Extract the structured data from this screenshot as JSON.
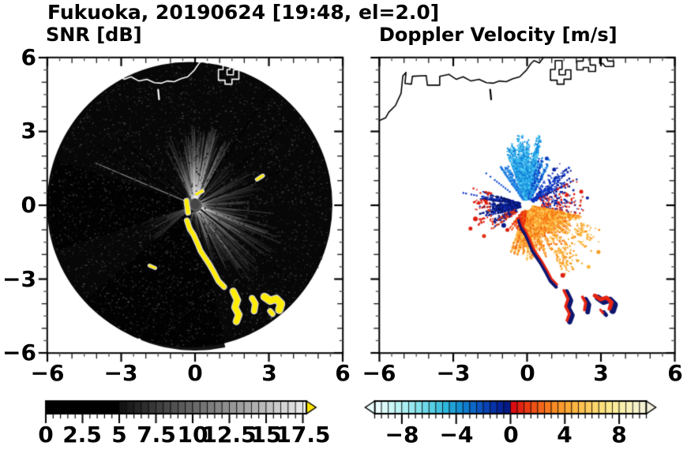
{
  "header": {
    "title": "Fukuoka, 20190624 [19:48, el=2.0]",
    "left_subtitle": "SNR [dB]",
    "right_subtitle": "Doppler Velocity [m/s]"
  },
  "chart_data": {
    "type": "heatmap",
    "title": "Fukuoka, 20190624 [19:48, el=2.0]",
    "axes": {
      "xlim": [
        -6,
        6
      ],
      "ylim": [
        -6,
        6
      ],
      "x_tick_values": [
        -6,
        -3,
        0,
        3,
        6
      ],
      "x_tick_labels": [
        "−6",
        "−3",
        "0",
        "3",
        "6"
      ],
      "y_tick_values": [
        6,
        3,
        0,
        -3,
        -6
      ],
      "y_tick_labels": [
        "6",
        "3",
        "0",
        "−3",
        "−6"
      ],
      "minor_step": 0.5
    },
    "panels": [
      {
        "name": "snr",
        "label": "SNR [dB]",
        "style": "grayscale disk with yellow strong echoes"
      },
      {
        "name": "doppler",
        "label": "Doppler Velocity [m/s]",
        "style": "diverging cyan-blue / red-yellow fan"
      }
    ],
    "snr_colorbar": {
      "unit": "dB",
      "range": [
        0,
        17.75
      ],
      "black_until": 5,
      "gray_from": "#141414",
      "gray_to": "#f2f2f2",
      "arrow": "#ffe400",
      "segment": 0.5,
      "tick_values": [
        0,
        2.5,
        5,
        7.5,
        10,
        12.5,
        15,
        17.5
      ],
      "tick_labels": [
        "0",
        "2.5",
        "5",
        "7.5",
        "10",
        "12.5",
        "15",
        "17.5"
      ]
    },
    "doppler_colorbar": {
      "unit": "m/s",
      "range": [
        -10,
        10
      ],
      "segment": 0.5,
      "tick_values": [
        -8,
        -4,
        0,
        4,
        8
      ],
      "tick_labels": [
        "−8",
        "−4",
        "0",
        "4",
        "8"
      ],
      "neg_stops": [
        "#eafcfc",
        "#cdf6f6",
        "#abeef2",
        "#83e2ec",
        "#57cfe4",
        "#2fb6dc",
        "#148fd2",
        "#0d67c6",
        "#0942b6",
        "#062499",
        "#031070"
      ],
      "pos_stops": [
        "#dc0d12",
        "#ea3a12",
        "#f3661a",
        "#f98b24",
        "#fca836",
        "#fdc150",
        "#fed76c",
        "#fde88c",
        "#faf0ac",
        "#f6f2c8",
        "#f1efdc"
      ]
    },
    "snr_panel": {
      "disk": {
        "cx": -0.22,
        "cy": 0.02,
        "r": 5.8,
        "fill": "#070707"
      },
      "center_hole": {
        "x": 0,
        "y": 0.03,
        "r": 0.2,
        "fill": "#454545"
      },
      "bright_sectors": [
        {
          "az": [
            -28,
            8
          ],
          "r": [
            0.28,
            3.0
          ],
          "n": 70,
          "a": 0.1
        },
        {
          "az": [
            -8,
            30
          ],
          "r": [
            0.28,
            3.3
          ],
          "n": 80,
          "a": 0.12
        },
        {
          "az": [
            30,
            60
          ],
          "r": [
            0.28,
            2.6
          ],
          "n": 30,
          "a": 0.05
        },
        {
          "az": [
            60,
            100
          ],
          "r": [
            0.28,
            2.8
          ],
          "n": 50,
          "a": 0.07
        },
        {
          "az": [
            100,
            150
          ],
          "r": [
            0.28,
            3.8
          ],
          "n": 85,
          "a": 0.1
        },
        {
          "az": [
            150,
            172
          ],
          "r": [
            0.28,
            3.0
          ],
          "n": 35,
          "a": 0.07
        },
        {
          "az": [
            172,
            205
          ],
          "r": [
            0.28,
            1.6
          ],
          "n": 20,
          "a": 0.045
        },
        {
          "az": [
            228,
            252
          ],
          "r": [
            0.28,
            2.3
          ],
          "n": 30,
          "a": 0.06
        },
        {
          "az": [
            288,
            345
          ],
          "r": [
            0.28,
            2.2
          ],
          "n": 25,
          "a": 0.035
        }
      ],
      "dark_wedges": [
        {
          "az": [
            252,
            289
          ],
          "r1": 0.24,
          "r2": 5.9
        },
        {
          "az": [
            203,
            229
          ],
          "r1": 0.24,
          "r2": 5.9
        },
        {
          "az": [
            168,
            203
          ],
          "r1": 1.35,
          "r2": 5.9
        }
      ],
      "dark_rays": [
        {
          "az": 33,
          "len": 5.6
        },
        {
          "az": 48,
          "len": 5.2
        },
        {
          "az": 68,
          "len": 4.0
        },
        {
          "az": 128,
          "len": 5.0
        },
        {
          "az": 302,
          "len": 4.6
        },
        {
          "az": 312,
          "len": 4.2
        }
      ],
      "bright_rays": [
        {
          "az": 293,
          "len": 4.4,
          "w": 1.2,
          "c": "rgba(225,225,225,0.55)"
        },
        {
          "az": 96,
          "len": 3.2,
          "w": 1.0,
          "c": "rgba(200,200,200,0.30)"
        }
      ],
      "yellow": "#ffec00",
      "halo": "#d6d6d6",
      "dashes": [
        {
          "pts": [
            [
              0.05,
              0.45
            ],
            [
              0.3,
              0.58
            ]
          ],
          "w": 3
        },
        {
          "pts": [
            [
              -0.35,
              0.18
            ],
            [
              -0.28,
              -0.3
            ]
          ],
          "w": 5
        },
        {
          "pts": [
            [
              2.52,
              1.05
            ],
            [
              2.75,
              1.2
            ]
          ],
          "w": 3
        },
        {
          "pts": [
            [
              -1.85,
              -2.45
            ],
            [
              -1.62,
              -2.55
            ]
          ],
          "w": 2.5
        }
      ]
    },
    "echo": {
      "arc": {
        "pts": [
          [
            -0.33,
            -0.62
          ],
          [
            -0.22,
            -0.95
          ],
          [
            -0.06,
            -1.2
          ],
          [
            0.1,
            -1.55
          ],
          [
            0.22,
            -1.85
          ],
          [
            0.38,
            -2.1
          ],
          [
            0.55,
            -2.35
          ],
          [
            0.78,
            -2.75
          ],
          [
            0.95,
            -3.08
          ],
          [
            1.18,
            -3.32
          ]
        ],
        "w": 5
      },
      "chain": {
        "pts": [
          [
            1.55,
            -3.5
          ],
          [
            1.72,
            -3.85
          ],
          [
            1.62,
            -4.15
          ],
          [
            1.78,
            -4.45
          ],
          [
            1.68,
            -4.72
          ]
        ],
        "w": 7
      },
      "blobs": [
        {
          "pts": [
            [
              2.32,
              -3.78
            ],
            [
              2.45,
              -4.0
            ],
            [
              2.4,
              -4.3
            ]
          ],
          "w": 6
        },
        {
          "pts": [
            [
              2.82,
              -3.72
            ],
            [
              3.05,
              -3.88
            ],
            [
              3.3,
              -3.8
            ],
            [
              3.5,
              -4.0
            ],
            [
              3.42,
              -4.25
            ]
          ],
          "w": 8
        },
        {
          "pts": [
            [
              3.05,
              -4.3
            ],
            [
              3.15,
              -4.42
            ]
          ],
          "w": 5
        }
      ]
    },
    "doppler_panel": {
      "center_hole": {
        "x": 0,
        "y": -0.02,
        "r": 0.18
      },
      "navy": "#0c1670",
      "red": "#e62412",
      "fans": [
        {
          "az": [
            -35,
            -22
          ],
          "r": [
            0.3,
            2.0
          ],
          "n": 18,
          "d": 0.5,
          "colors": [
            "#1b74dc",
            "#2e96e6"
          ]
        },
        {
          "az": [
            -22,
            12
          ],
          "r": [
            0.25,
            2.9
          ],
          "n": 95,
          "d": 0.6,
          "colors": [
            "#2fb2ec",
            "#1e98e2",
            "#55c9f2",
            "#0f7cd6"
          ]
        },
        {
          "az": [
            12,
            30
          ],
          "r": [
            0.3,
            2.2
          ],
          "n": 30,
          "d": 0.5,
          "colors": [
            "#1565d4",
            "#0c3ec0",
            "#2fa6e8"
          ]
        },
        {
          "az": [
            30,
            62
          ],
          "r": [
            0.3,
            2.4
          ],
          "n": 28,
          "d": 0.35,
          "colors": [
            "#0a22a0",
            "#1240cc"
          ]
        },
        {
          "az": [
            62,
            100
          ],
          "r": [
            0.6,
            2.6
          ],
          "n": 25,
          "d": 0.25,
          "colors": [
            "#0a22a0",
            "#dc2012"
          ]
        },
        {
          "az": [
            100,
            200
          ],
          "r": [
            0.25,
            2.25
          ],
          "n": 175,
          "d": 0.75,
          "colors": [
            "#f8891a",
            "#fa9c28",
            "#fcb944",
            "#f46d10",
            "#fdd060"
          ]
        },
        {
          "az": [
            108,
            152
          ],
          "r": [
            2.2,
            3.35
          ],
          "n": 40,
          "d": 0.3,
          "colors": [
            "#f8991e",
            "#fcb944"
          ]
        },
        {
          "az": [
            188,
            218
          ],
          "r": [
            0.3,
            1.25
          ],
          "n": 25,
          "d": 0.5,
          "colors": [
            "#e62a10",
            "#f05512"
          ]
        },
        {
          "az": [
            252,
            287
          ],
          "r": [
            0.3,
            2.0
          ],
          "n": 45,
          "d": 0.65,
          "colors": [
            "#0a1c8e",
            "#122cae",
            "#061260"
          ]
        },
        {
          "az": [
            248,
            292
          ],
          "r": [
            1.55,
            2.35
          ],
          "n": 22,
          "d": 0.3,
          "colors": [
            "#dc2012"
          ]
        },
        {
          "az": [
            235,
            251
          ],
          "r": [
            0.5,
            1.75
          ],
          "n": 16,
          "d": 0.45,
          "colors": [
            "#e03014",
            "#0a1c8e"
          ]
        }
      ],
      "dotted_rays": [
        {
          "az": 281,
          "r": [
            1.1,
            2.7
          ],
          "c": "#1535c8"
        },
        {
          "az": 308,
          "r": [
            0.9,
            2.2
          ],
          "c": "#1550d0"
        }
      ],
      "dots": [
        [
          1.62,
          0.42,
          2.5,
          "#dc2012"
        ],
        [
          2.2,
          0.55,
          2.5,
          "#dc2012"
        ],
        [
          2.45,
          0.3,
          2,
          "#0a22a0"
        ],
        [
          1.45,
          -2.85,
          3,
          "#dc2012"
        ],
        [
          -2.1,
          -0.55,
          3,
          "#dc2012"
        ],
        [
          -2.3,
          -0.95,
          2.5,
          "#dc2012"
        ],
        [
          -1.75,
          -1.25,
          2.5,
          "#e03014"
        ],
        [
          -0.95,
          -0.82,
          3,
          "#0a1c8e"
        ],
        [
          -0.8,
          -1.0,
          2.5,
          "#dc2012"
        ],
        [
          2.9,
          -1.9,
          2.5,
          "#f8991e"
        ],
        [
          2.5,
          -2.5,
          2.5,
          "#fcb944"
        ],
        [
          0.8,
          1.9,
          2.5,
          "#0c3ec0"
        ],
        [
          1.1,
          1.45,
          2.5,
          "#0a22a0"
        ]
      ]
    },
    "coast": {
      "main": [
        [
          -6.1,
          3.4
        ],
        [
          -5.75,
          3.55
        ],
        [
          -5.62,
          3.78
        ],
        [
          -5.35,
          4.05
        ],
        [
          -5.12,
          4.55
        ],
        [
          -5.05,
          5.25
        ],
        [
          -4.92,
          5.4
        ],
        [
          -4.96,
          4.95
        ],
        [
          -4.7,
          4.92
        ],
        [
          -4.66,
          5.24
        ],
        [
          -4.1,
          5.27
        ],
        [
          -4.05,
          4.88
        ],
        [
          -3.55,
          4.88
        ],
        [
          -3.55,
          5.24
        ],
        [
          -3.18,
          5.32
        ],
        [
          -2.88,
          5.12
        ],
        [
          -2.6,
          5.22
        ],
        [
          -2.28,
          5.05
        ],
        [
          -1.95,
          5.12
        ],
        [
          -1.65,
          4.98
        ],
        [
          -1.38,
          4.96
        ],
        [
          -1.12,
          5.05
        ],
        [
          -0.85,
          5.02
        ],
        [
          -0.58,
          5.14
        ],
        [
          -0.3,
          5.22
        ],
        [
          -0.02,
          5.5
        ],
        [
          0.15,
          5.75
        ],
        [
          0.28,
          5.88
        ],
        [
          0.5,
          5.78
        ],
        [
          0.65,
          5.98
        ]
      ],
      "dash": [
        [
          -1.5,
          4.7
        ],
        [
          -1.46,
          4.3
        ]
      ],
      "islands": [
        [
          [
            0.95,
            5.08
          ],
          [
            0.95,
            5.52
          ],
          [
            1.14,
            5.52
          ],
          [
            1.14,
            5.88
          ],
          [
            1.42,
            5.88
          ],
          [
            1.42,
            5.52
          ],
          [
            1.3,
            5.52
          ],
          [
            1.3,
            5.3
          ],
          [
            1.56,
            5.3
          ],
          [
            1.56,
            5.5
          ],
          [
            1.78,
            5.5
          ],
          [
            1.78,
            5.12
          ],
          [
            1.5,
            5.12
          ],
          [
            1.5,
            4.92
          ],
          [
            1.22,
            4.92
          ],
          [
            1.22,
            5.08
          ],
          [
            0.95,
            5.08
          ]
        ],
        [
          [
            2.02,
            5.5
          ],
          [
            2.02,
            5.86
          ],
          [
            2.28,
            5.86
          ],
          [
            2.28,
            6.02
          ],
          [
            2.56,
            6.02
          ],
          [
            2.56,
            5.7
          ],
          [
            2.78,
            5.7
          ],
          [
            2.78,
            5.44
          ],
          [
            2.5,
            5.44
          ],
          [
            2.5,
            5.6
          ],
          [
            2.28,
            5.6
          ],
          [
            2.28,
            5.5
          ],
          [
            2.02,
            5.5
          ]
        ],
        [
          [
            2.95,
            5.76
          ],
          [
            2.95,
            6.02
          ],
          [
            3.22,
            6.02
          ],
          [
            3.28,
            5.86
          ],
          [
            3.52,
            5.86
          ],
          [
            3.52,
            5.64
          ],
          [
            3.18,
            5.64
          ],
          [
            3.08,
            5.76
          ],
          [
            2.95,
            5.76
          ]
        ]
      ]
    }
  }
}
